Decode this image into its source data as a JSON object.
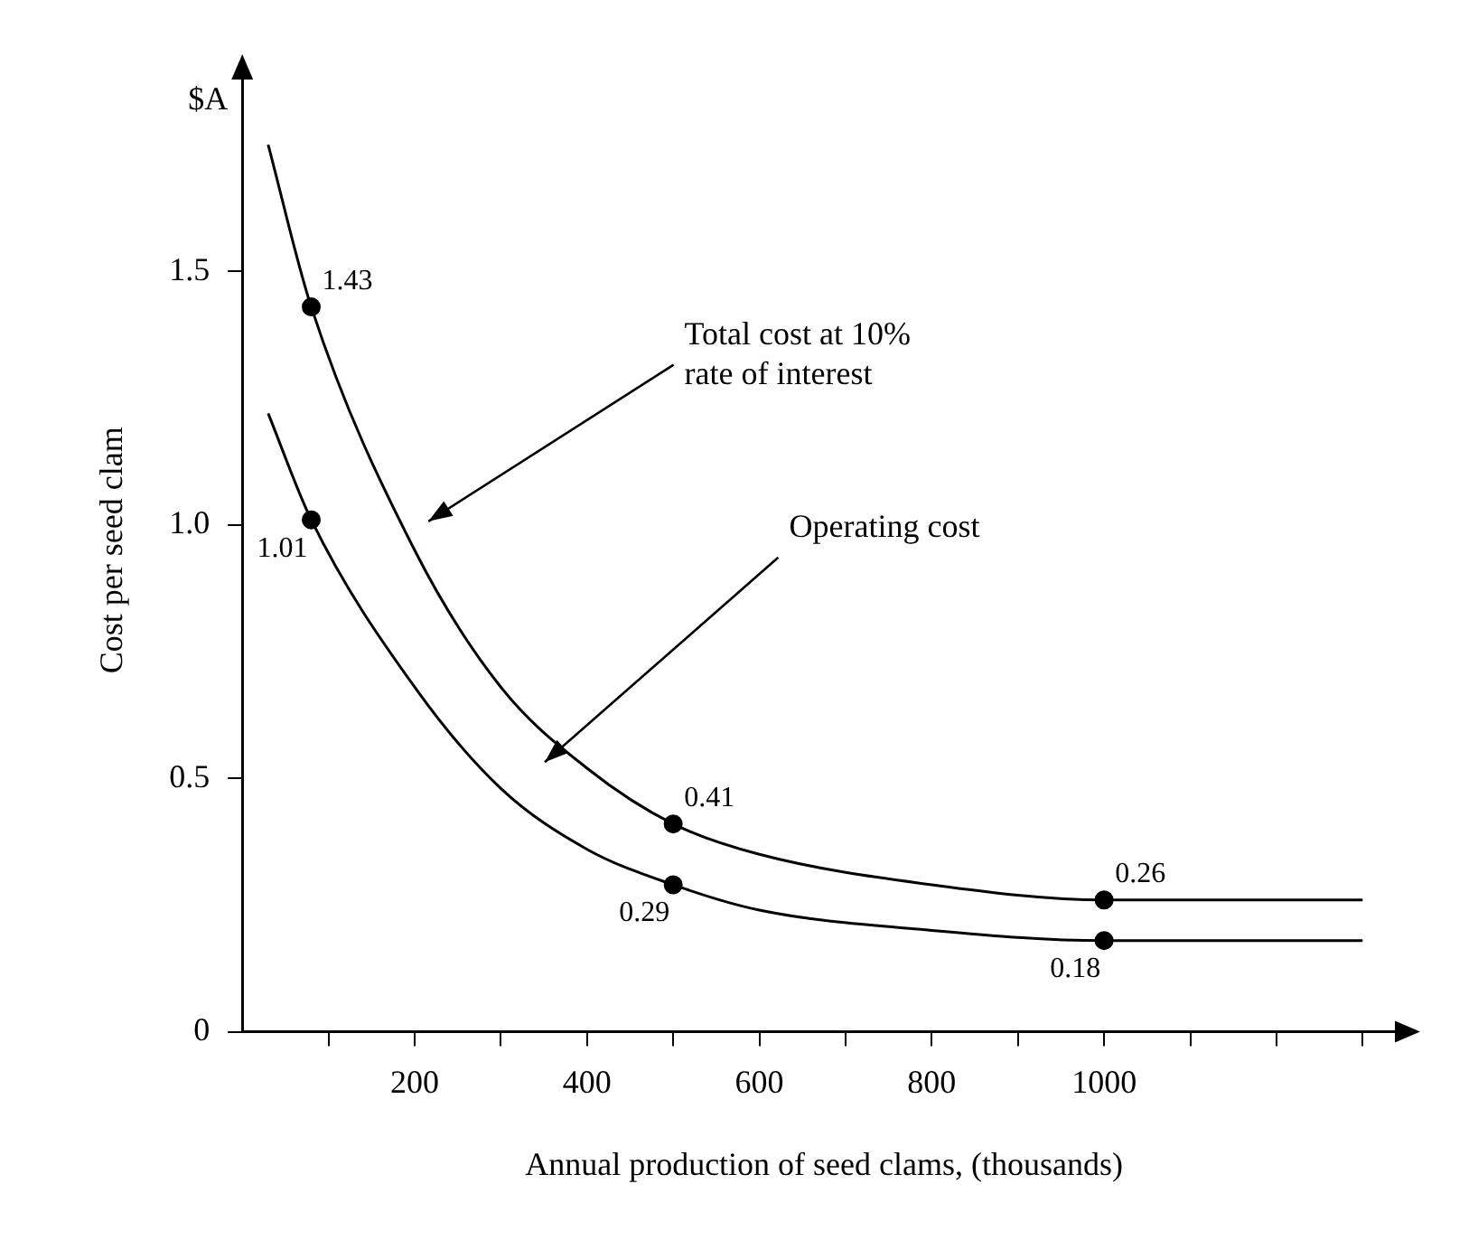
{
  "chart_data": {
    "type": "line",
    "xlabel": "Annual production of seed clams, (thousands)",
    "ylabel": "Cost per seed clam",
    "xlim": [
      0,
      1350
    ],
    "ylim": [
      0,
      1.9
    ],
    "xticks": [
      {
        "value": 100,
        "label": null
      },
      200,
      {
        "value": 300,
        "label": null
      },
      400,
      {
        "value": 500,
        "label": null
      },
      600,
      {
        "value": 700,
        "label": null
      },
      800,
      {
        "value": 900,
        "label": null
      },
      1000,
      {
        "value": 1100,
        "label": null
      },
      {
        "value": 1200,
        "label": null
      },
      {
        "value": 1300,
        "label": null
      }
    ],
    "yticks": [
      0,
      0.5,
      {
        "value": 1,
        "label": "1.0"
      },
      1.5
    ],
    "grid": false,
    "legend": false,
    "series": [
      {
        "type": "line",
        "color": "#000000",
        "marker": "none",
        "x": [
          30,
          80,
          200,
          300,
          400,
          500,
          600,
          800,
          1000,
          1300
        ],
        "values": [
          1.75,
          1.43,
          0.95,
          0.68,
          0.52,
          0.41,
          0.35,
          0.29,
          0.26,
          0.26
        ]
      },
      {
        "type": "line",
        "color": "#000000",
        "marker": "none",
        "x": [
          30,
          80,
          200,
          300,
          400,
          500,
          600,
          800,
          1000,
          1300
        ],
        "values": [
          1.22,
          1.01,
          0.68,
          0.48,
          0.36,
          0.29,
          0.24,
          0.2,
          0.18,
          0.18
        ]
      },
      {
        "type": "scatter",
        "color": "#000000",
        "marker": "circle",
        "x": [
          80,
          500,
          1000
        ],
        "values": [
          1.43,
          0.41,
          0.26
        ],
        "value_labels": [
          "1.43",
          "0.41",
          "0.26"
        ]
      },
      {
        "type": "scatter",
        "color": "#000000",
        "marker": "circle",
        "x": [
          80,
          500,
          1000
        ],
        "values": [
          1.01,
          0.29,
          0.18
        ],
        "value_labels": [
          "1.01",
          "0.29",
          "0.18"
        ]
      }
    ],
    "annotations": [
      "Total cost at 10%\nrate of interest",
      "Operating cost",
      "$A"
    ]
  }
}
